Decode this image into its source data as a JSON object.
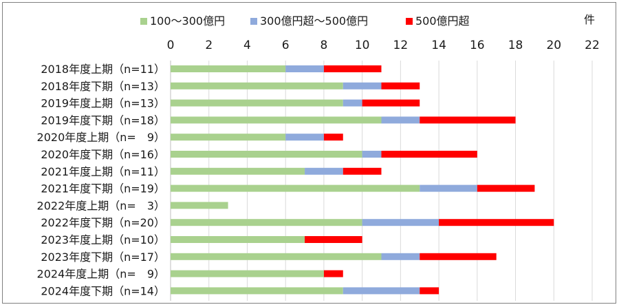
{
  "chart_data": {
    "type": "bar",
    "orientation": "horizontal",
    "stacked": true,
    "unit": "件",
    "xlim": [
      0,
      22
    ],
    "xticks": [
      0,
      2,
      4,
      6,
      8,
      10,
      12,
      14,
      16,
      18,
      20,
      22
    ],
    "grid": true,
    "legend_position": "top",
    "categories": [
      "2018年度上期（n=11）",
      "2018年度下期（n=13）",
      "2019年度上期（n=13）",
      "2019年度下期（n=18）",
      "2020年度上期（n=　9）",
      "2020年度下期（n=16）",
      "2021年度上期（n=11）",
      "2021年度下期（n=19）",
      "2022年度上期（n=　3）",
      "2022年度下期（n=20）",
      "2023年度上期（n=10）",
      "2023年度下期（n=17）",
      "2024年度上期（n=　9）",
      "2024年度下期（n=14）"
    ],
    "series": [
      {
        "name": "100～300億円",
        "color": "#a9d18e",
        "values": [
          6,
          9,
          9,
          11,
          6,
          10,
          7,
          13,
          3,
          10,
          7,
          11,
          8,
          9
        ]
      },
      {
        "name": "300億円超～500億円",
        "color": "#8faadc",
        "values": [
          2,
          2,
          1,
          2,
          2,
          1,
          2,
          3,
          0,
          4,
          0,
          2,
          0,
          4
        ]
      },
      {
        "name": "500億円超",
        "color": "#ff0000",
        "values": [
          3,
          2,
          3,
          5,
          1,
          5,
          2,
          3,
          0,
          6,
          3,
          4,
          1,
          1
        ]
      }
    ]
  }
}
